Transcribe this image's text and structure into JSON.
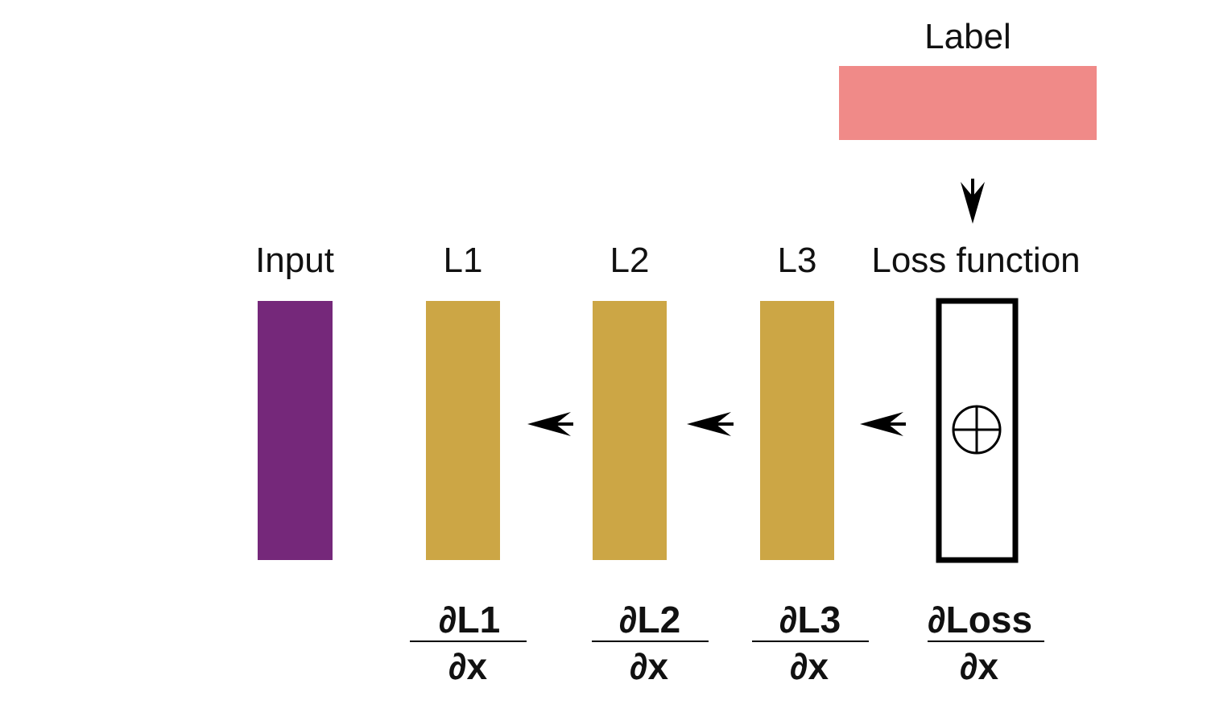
{
  "label": {
    "text": "Label",
    "color": "#F08A88"
  },
  "input": {
    "text": "Input",
    "color": "#75287A"
  },
  "layers": [
    {
      "id": "l1",
      "text": "L1",
      "numerator": "∂L1",
      "denominator": "∂x"
    },
    {
      "id": "l2",
      "text": "L2",
      "numerator": "∂L2",
      "denominator": "∂x"
    },
    {
      "id": "l3",
      "text": "L3",
      "numerator": "∂L3",
      "denominator": "∂x"
    }
  ],
  "layer_color": "#CCA645",
  "loss": {
    "text": "Loss function",
    "numerator": "∂Loss",
    "denominator": "∂x",
    "symbol": "circled-plus-icon"
  },
  "arrows": [
    "arrow-down-icon",
    "arrow-left-icon"
  ]
}
